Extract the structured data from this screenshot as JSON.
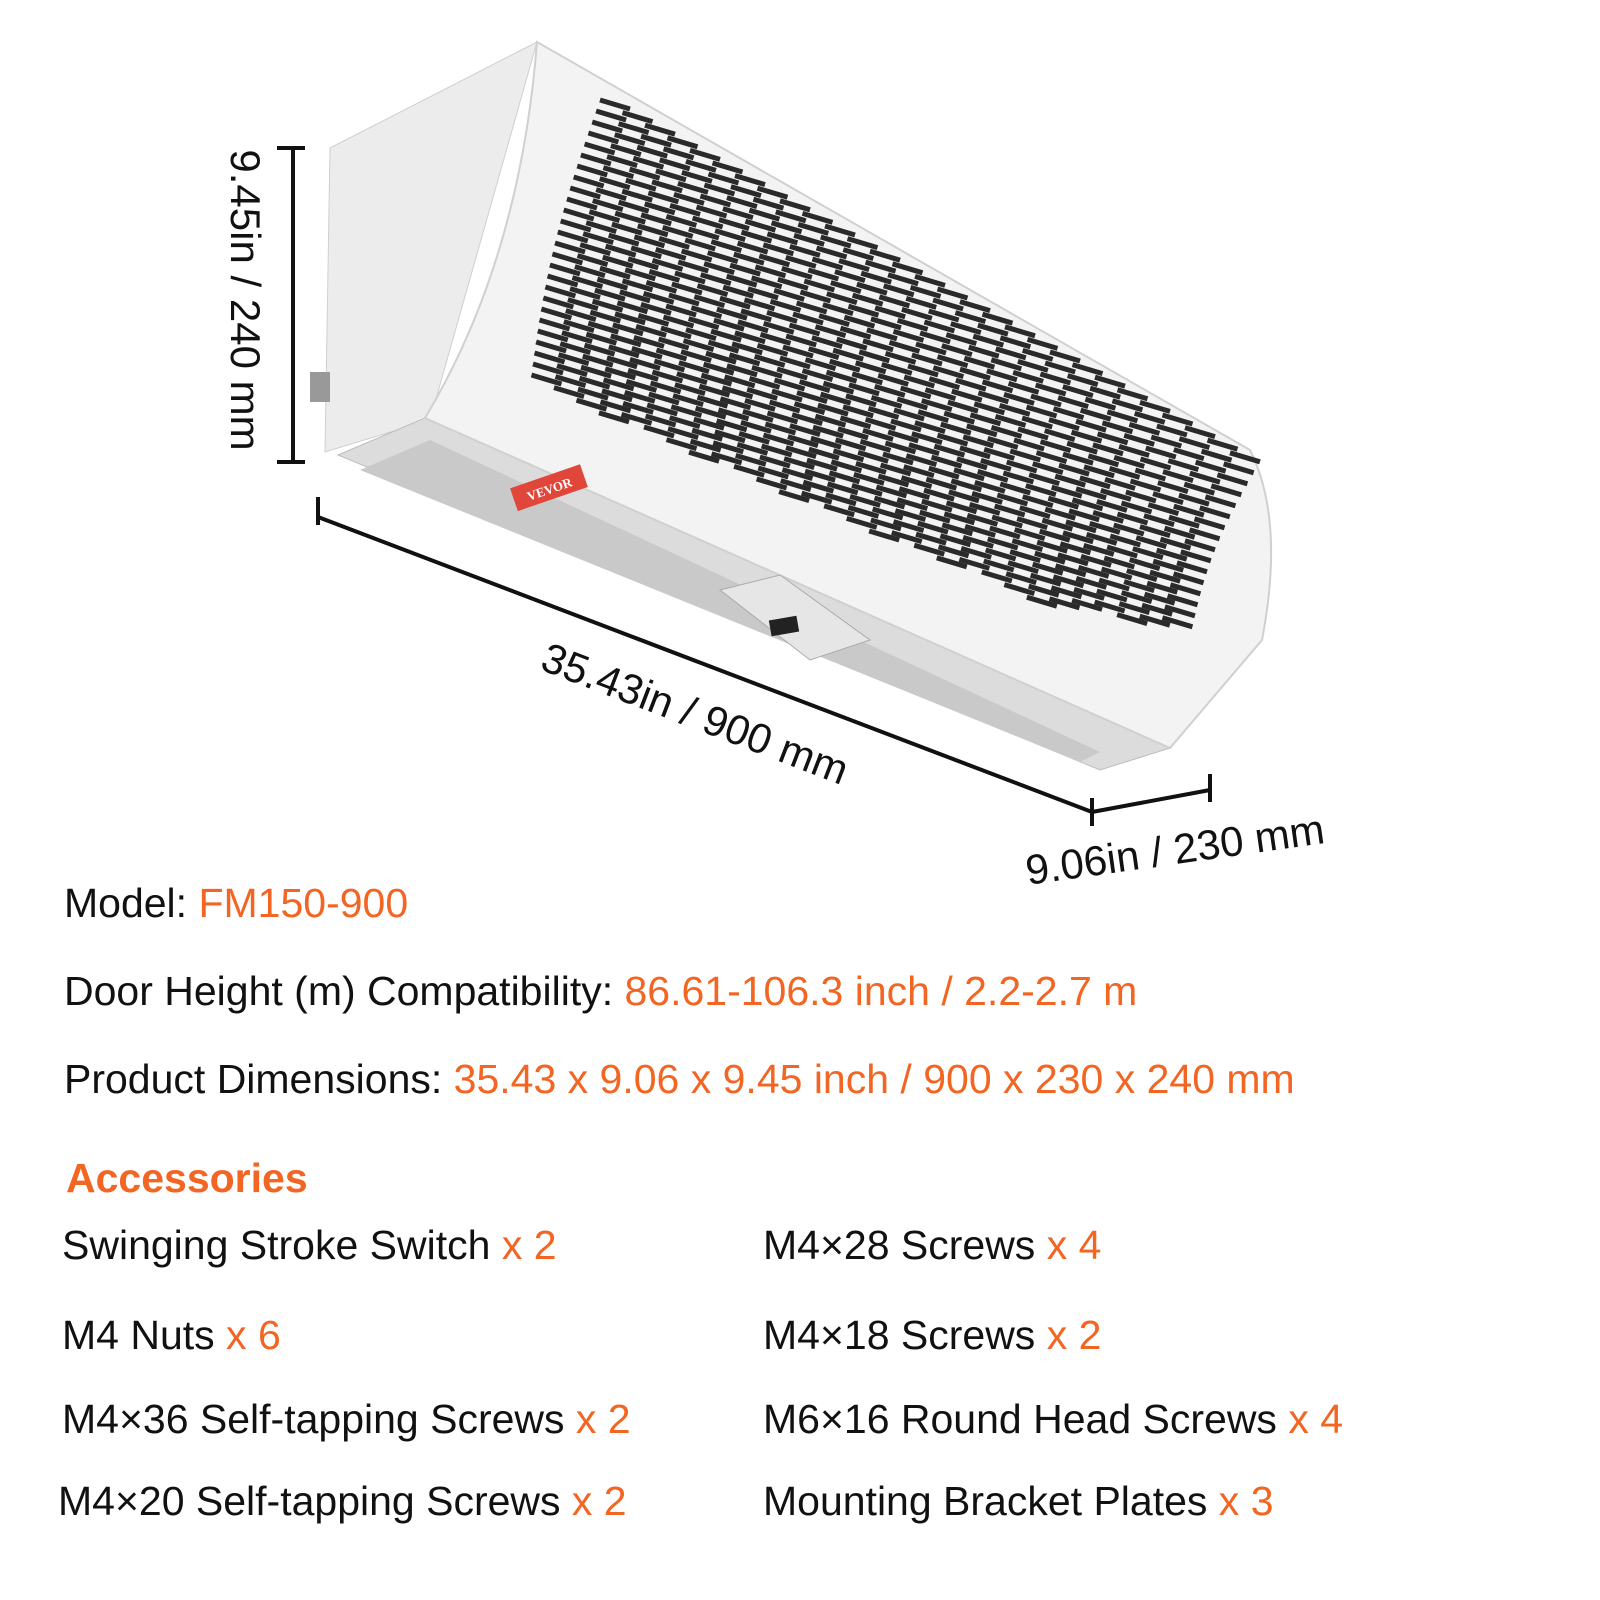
{
  "product": {
    "brand_label": "VEVOR",
    "dimensions": {
      "height": "9.45in / 240 mm",
      "length": "35.43in / 900 mm",
      "depth": "9.06in / 230 mm"
    }
  },
  "specs": [
    {
      "label": "Model: ",
      "value": "FM150-900"
    },
    {
      "label": "Door Height (m) Compatibility: ",
      "value": "86.61-106.3 inch / 2.2-2.7 m"
    },
    {
      "label": "Product Dimensions: ",
      "value": "35.43 x 9.06 x 9.45 inch / 900 x 230 x 240 mm"
    }
  ],
  "accessories": {
    "title": "Accessories",
    "items": [
      {
        "name": "Swinging Stroke Switch ",
        "qty": "x 2"
      },
      {
        "name": "M4×28 Screws ",
        "qty": "x 4"
      },
      {
        "name": "M4 Nuts ",
        "qty": "x 6"
      },
      {
        "name": "M4×18 Screws ",
        "qty": "x 2"
      },
      {
        "name": "M4×36 Self-tapping Screws ",
        "qty": "x 2"
      },
      {
        "name": "M6×16 Round Head Screws ",
        "qty": "x 4"
      },
      {
        "name": "M4×20 Self-tapping Screws ",
        "qty": "x 2"
      },
      {
        "name": "Mounting Bracket Plates ",
        "qty": "x 3"
      }
    ]
  },
  "colors": {
    "accent": "#f26522",
    "text": "#111111",
    "label_red": "#e0463a"
  }
}
